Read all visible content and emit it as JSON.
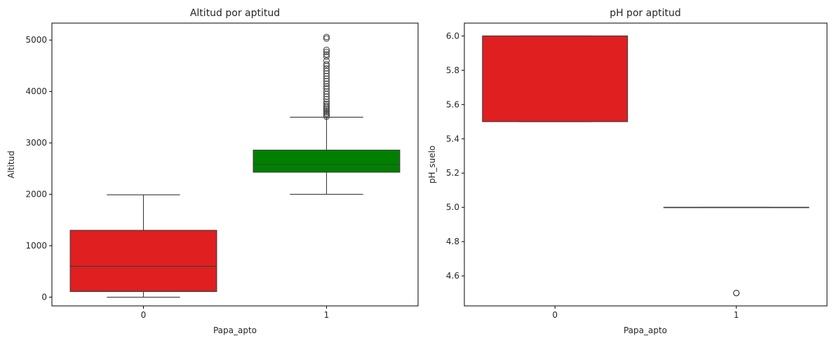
{
  "chart_data": [
    {
      "type": "box",
      "title": "Altitud por aptitud",
      "xlabel": "Papa_apto",
      "ylabel": "Altitud",
      "ylim": [
        -170,
        5330
      ],
      "yticks": [
        "0",
        "1000",
        "2000",
        "3000",
        "4000",
        "5000"
      ],
      "categories": [
        "0",
        "1"
      ],
      "boxes": [
        {
          "category": "0",
          "color": "#e01f21",
          "whisker_low": 0,
          "q1": 110,
          "median": 600,
          "q3": 1300,
          "whisker_high": 1990,
          "outliers": []
        },
        {
          "category": "1",
          "color": "#008000",
          "whisker_low": 2000,
          "q1": 2430,
          "median": 2580,
          "q3": 2860,
          "whisker_high": 3500,
          "outliers": [
            3510,
            3540,
            3570,
            3600,
            3630,
            3660,
            3690,
            3720,
            3760,
            3800,
            3850,
            3900,
            3950,
            4000,
            4060,
            4100,
            4150,
            4200,
            4250,
            4300,
            4350,
            4400,
            4450,
            4500,
            4530,
            4600,
            4680,
            4720,
            4770,
            4810,
            5030,
            5060
          ]
        }
      ]
    },
    {
      "type": "box",
      "title": "pH por aptitud",
      "xlabel": "Papa_apto",
      "ylabel": "pH_suelo",
      "ylim": [
        4.425,
        6.075
      ],
      "yticks": [
        "4.6",
        "4.8",
        "5.0",
        "5.2",
        "5.4",
        "5.6",
        "5.8",
        "6.0"
      ],
      "categories": [
        "0",
        "1"
      ],
      "boxes": [
        {
          "category": "0",
          "color": "#e01f21",
          "whisker_low": 5.5,
          "q1": 5.5,
          "median": 6.0,
          "q3": 6.0,
          "whisker_high": 6.0,
          "outliers": []
        },
        {
          "category": "1",
          "color": "#008000",
          "whisker_low": 5.0,
          "q1": 5.0,
          "median": 5.0,
          "q3": 5.0,
          "whisker_high": 5.0,
          "outliers": [
            4.5,
            4.5,
            4.5
          ]
        }
      ]
    }
  ]
}
